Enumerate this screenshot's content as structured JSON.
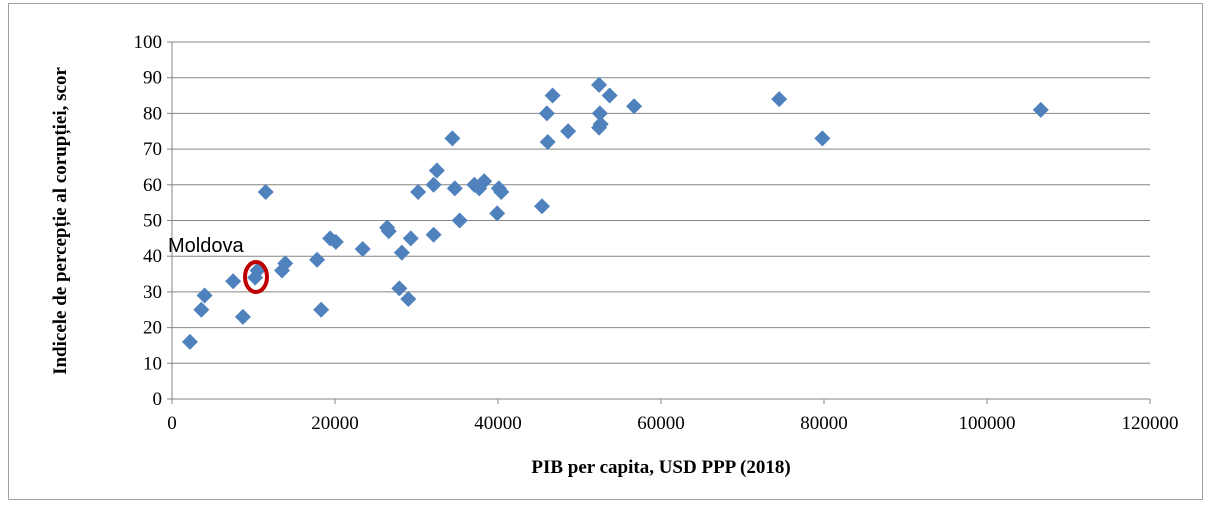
{
  "chart_data": {
    "type": "scatter",
    "x_label": "PIB per capita, USD PPP (2018)",
    "y_label": "Indicele de percepție al corupției, scor",
    "annotation": "Moldova",
    "color": "#4f81bd",
    "grid": true,
    "xlim": [
      0,
      120000
    ],
    "xticks": [
      0,
      20000,
      40000,
      60000,
      80000,
      100000,
      120000
    ],
    "ylim": [
      0,
      100
    ],
    "yticks": [
      0,
      10,
      20,
      30,
      40,
      50,
      60,
      70,
      80,
      90,
      100
    ],
    "x": [
      2200,
      3600,
      4000,
      7500,
      8700,
      10200,
      10500,
      11500,
      13500,
      13900,
      17800,
      18300,
      19400,
      20100,
      23400,
      26400,
      26600,
      27900,
      28200,
      29000,
      29300,
      30200,
      32100,
      32100,
      32500,
      34400,
      34700,
      35300,
      37100,
      37700,
      38300,
      39900,
      40100,
      40400,
      45400,
      46000,
      46100,
      46700,
      48600,
      52400,
      52500,
      52400,
      52600,
      53700,
      56700,
      74500,
      79800,
      106600
    ],
    "values": [
      16,
      25,
      29,
      33,
      23,
      34,
      36,
      58,
      36,
      38,
      39,
      25,
      45,
      44,
      42,
      48,
      47,
      31,
      41,
      28,
      45,
      58,
      46,
      60,
      64,
      73,
      59,
      50,
      60,
      59,
      61,
      52,
      59,
      58,
      54,
      80,
      72,
      85,
      75,
      88,
      80,
      76,
      77,
      85,
      82,
      84,
      73,
      81
    ]
  }
}
